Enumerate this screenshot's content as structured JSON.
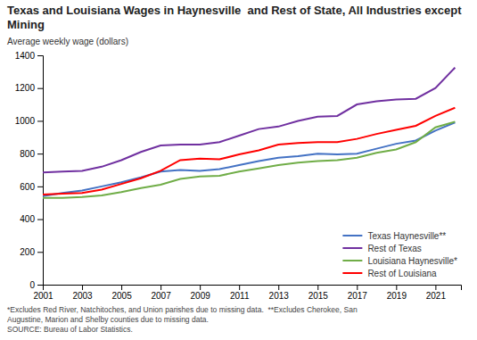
{
  "chart_data": {
    "type": "line",
    "title": "Texas and Louisiana Wages in Haynesville  and Rest of State, All Industries except Mining",
    "ylabel": "Average weekly wage (dollars)",
    "annotations": [
      "*Excludes Red River, Natchitoches, and Union parishes due to missing data.  **Excludes Cherokee, San",
      "Augustine, Marion and Shelby counties due to missing data.",
      "SOURCE: Bureau of Labor Statistics."
    ],
    "x": [
      2001,
      2002,
      2003,
      2004,
      2005,
      2006,
      2007,
      2008,
      2009,
      2010,
      2011,
      2012,
      2013,
      2014,
      2015,
      2016,
      2017,
      2018,
      2019,
      2020,
      2021,
      2022
    ],
    "series": [
      {
        "name": "Texas Haynesville**",
        "color": "#4472C4",
        "values": [
          540,
          560,
          575,
          600,
          625,
          655,
          690,
          700,
          695,
          705,
          730,
          755,
          775,
          785,
          800,
          795,
          800,
          830,
          860,
          880,
          940,
          990
        ]
      },
      {
        "name": "Rest of Texas",
        "color": "#7030A0",
        "values": [
          685,
          690,
          695,
          720,
          760,
          810,
          850,
          855,
          855,
          870,
          910,
          950,
          965,
          1000,
          1025,
          1030,
          1100,
          1120,
          1130,
          1135,
          1200,
          1325
        ]
      },
      {
        "name": "Louisiana Haynesville*",
        "color": "#70AD47",
        "values": [
          530,
          530,
          535,
          545,
          565,
          590,
          610,
          645,
          660,
          665,
          690,
          710,
          730,
          745,
          755,
          760,
          775,
          805,
          825,
          870,
          960,
          995
        ]
      },
      {
        "name": "Rest of Louisiana",
        "color": "#FF0000",
        "values": [
          550,
          555,
          560,
          580,
          615,
          650,
          695,
          760,
          770,
          765,
          795,
          820,
          855,
          865,
          870,
          870,
          890,
          920,
          945,
          970,
          1030,
          1080
        ]
      }
    ],
    "xlim": [
      2001,
      2022.3
    ],
    "xticks": [
      2001,
      2003,
      2005,
      2007,
      2009,
      2011,
      2013,
      2015,
      2017,
      2019,
      2021
    ],
    "ylim": [
      0,
      1400
    ],
    "yticks": [
      0,
      200,
      400,
      600,
      800,
      1000,
      1200,
      1400
    ],
    "grid": false,
    "legend": "lower right"
  }
}
